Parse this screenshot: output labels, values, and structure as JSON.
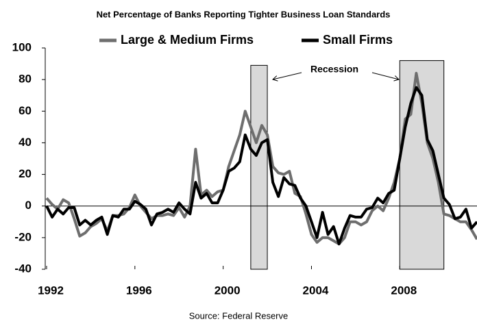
{
  "chart_data": {
    "type": "line",
    "title": "Net Percentage of Banks Reporting Tighter Business Loan Standards",
    "source": "Source: Federal Reserve",
    "annotation": "Recession",
    "recessions": [
      {
        "start": 2001.25,
        "end": 2002.0,
        "top": 89
      },
      {
        "start": 2008.0,
        "end": 2010.0,
        "top": 92
      }
    ],
    "x": [
      1992,
      1992.25,
      1992.5,
      1992.75,
      1993,
      1993.25,
      1993.5,
      1993.75,
      1994,
      1994.25,
      1994.5,
      1994.75,
      1995,
      1995.25,
      1995.5,
      1995.75,
      1996,
      1996.25,
      1996.5,
      1996.75,
      1997,
      1997.25,
      1997.5,
      1997.75,
      1998,
      1998.25,
      1998.5,
      1998.75,
      1999,
      1999.25,
      1999.5,
      1999.75,
      2000,
      2000.25,
      2000.5,
      2000.75,
      2001,
      2001.25,
      2001.5,
      2001.75,
      2002,
      2002.25,
      2002.5,
      2002.75,
      2003,
      2003.25,
      2003.5,
      2003.75,
      2004,
      2004.25,
      2004.5,
      2004.75,
      2005,
      2005.25,
      2005.5,
      2005.75,
      2006,
      2006.25,
      2006.5,
      2006.75,
      2007,
      2007.25,
      2007.5,
      2007.75,
      2008,
      2008.25,
      2008.5,
      2008.75,
      2009,
      2009.25,
      2009.5,
      2009.75,
      2010,
      2010.25,
      2010.5,
      2010.75,
      2011,
      2011.25,
      2011.5
    ],
    "series": [
      {
        "name": "Large & Medium Firms",
        "color": "#6e6e6e",
        "values": [
          5,
          1,
          -2,
          4,
          2,
          -8,
          -19,
          -17,
          -13,
          -11,
          -8,
          -16,
          -6,
          -6,
          -5,
          -1,
          7,
          0,
          -4,
          -8,
          -6,
          -6,
          -5,
          -6,
          -1,
          -7,
          0,
          36,
          7,
          10,
          6,
          9,
          10,
          25,
          35,
          45,
          60,
          50,
          40,
          51,
          45,
          25,
          21,
          20,
          22,
          8,
          6,
          -5,
          -18,
          -23,
          -20,
          -20,
          -22,
          -24,
          -20,
          -10,
          -10,
          -12,
          -10,
          -3,
          0,
          -3,
          5,
          15,
          30,
          55,
          58,
          84,
          65,
          40,
          30,
          15,
          -5,
          -6,
          -8,
          -10,
          -10,
          -15,
          -21
        ]
      },
      {
        "name": "Small Firms",
        "color": "#000000",
        "values": [
          0,
          -7,
          -2,
          -5,
          -1,
          -1,
          -12,
          -9,
          -12,
          -9,
          -7,
          -18,
          -6,
          -7,
          -2,
          -2,
          3,
          1,
          -2,
          -12,
          -5,
          -4,
          -2,
          -4,
          2,
          -2,
          -5,
          15,
          5,
          8,
          2,
          2,
          10,
          22,
          24,
          28,
          45,
          36,
          32,
          40,
          42,
          15,
          6,
          18,
          14,
          13,
          5,
          0,
          -10,
          -20,
          -4,
          -18,
          -13,
          -24,
          -14,
          -6,
          -7,
          -7,
          -2,
          -1,
          5,
          2,
          8,
          10,
          30,
          50,
          65,
          75,
          70,
          42,
          35,
          20,
          5,
          1,
          -8,
          -7,
          -2,
          -14,
          -10
        ]
      }
    ],
    "xlim": [
      1992,
      2011.5
    ],
    "ylim": [
      -40,
      100
    ],
    "xticks": [
      1992,
      1996,
      2000,
      2004,
      2008
    ],
    "yticks": [
      -40,
      -20,
      0,
      20,
      40,
      60,
      80,
      100
    ]
  }
}
